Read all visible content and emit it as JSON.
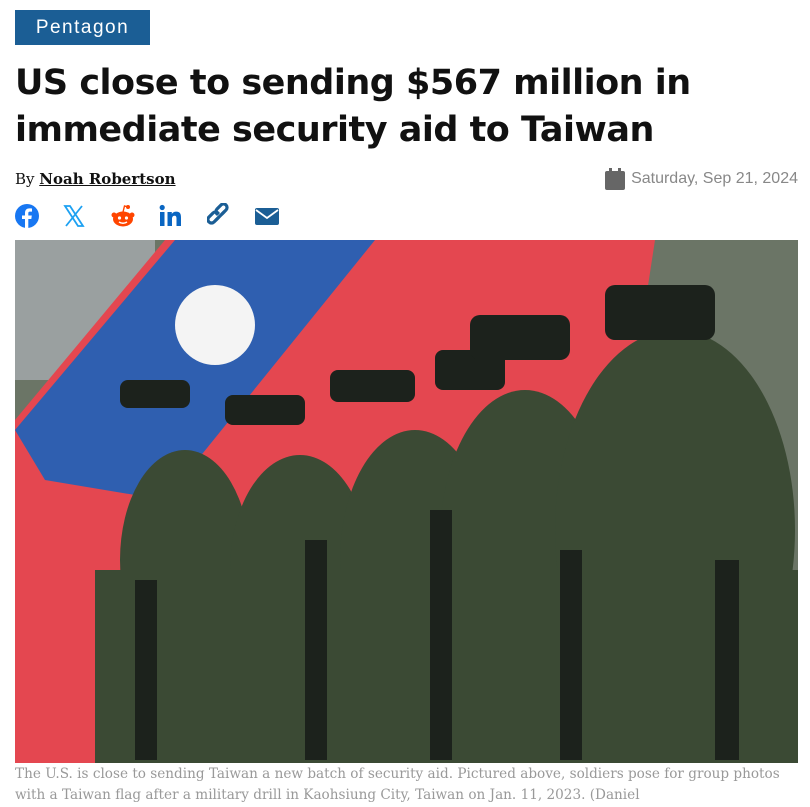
{
  "section_tag": "Pentagon",
  "headline": "US close to sending $567 million in immediate security aid to Taiwan",
  "byline": {
    "prefix": "By",
    "author": "Noah Robertson"
  },
  "date": {
    "icon": "calendar-icon",
    "text": "Saturday, Sep 21, 2024"
  },
  "share": [
    {
      "name": "facebook",
      "icon": "facebook-icon",
      "color": "#1877f2"
    },
    {
      "name": "x",
      "icon": "x-icon",
      "color": "#1da1f2"
    },
    {
      "name": "reddit",
      "icon": "reddit-icon",
      "color": "#ff4500"
    },
    {
      "name": "linkedin",
      "icon": "linkedin-icon",
      "color": "#0a66c2"
    },
    {
      "name": "copy-link",
      "icon": "link-icon",
      "color": "#1b5e95"
    },
    {
      "name": "email",
      "icon": "email-icon",
      "color": "#1b5e95"
    }
  ],
  "image": {
    "description_alt": "Soldiers posing with a Taiwan flag"
  },
  "caption": "The U.S. is close to sending Taiwan a new batch of security aid. Pictured above, soldiers pose for group photos with a Taiwan flag after a military drill in Kaohsiung City, Taiwan on Jan. 11, 2023. (Daniel",
  "colors": {
    "tag": "#1b5e95",
    "caption": "#999999"
  }
}
